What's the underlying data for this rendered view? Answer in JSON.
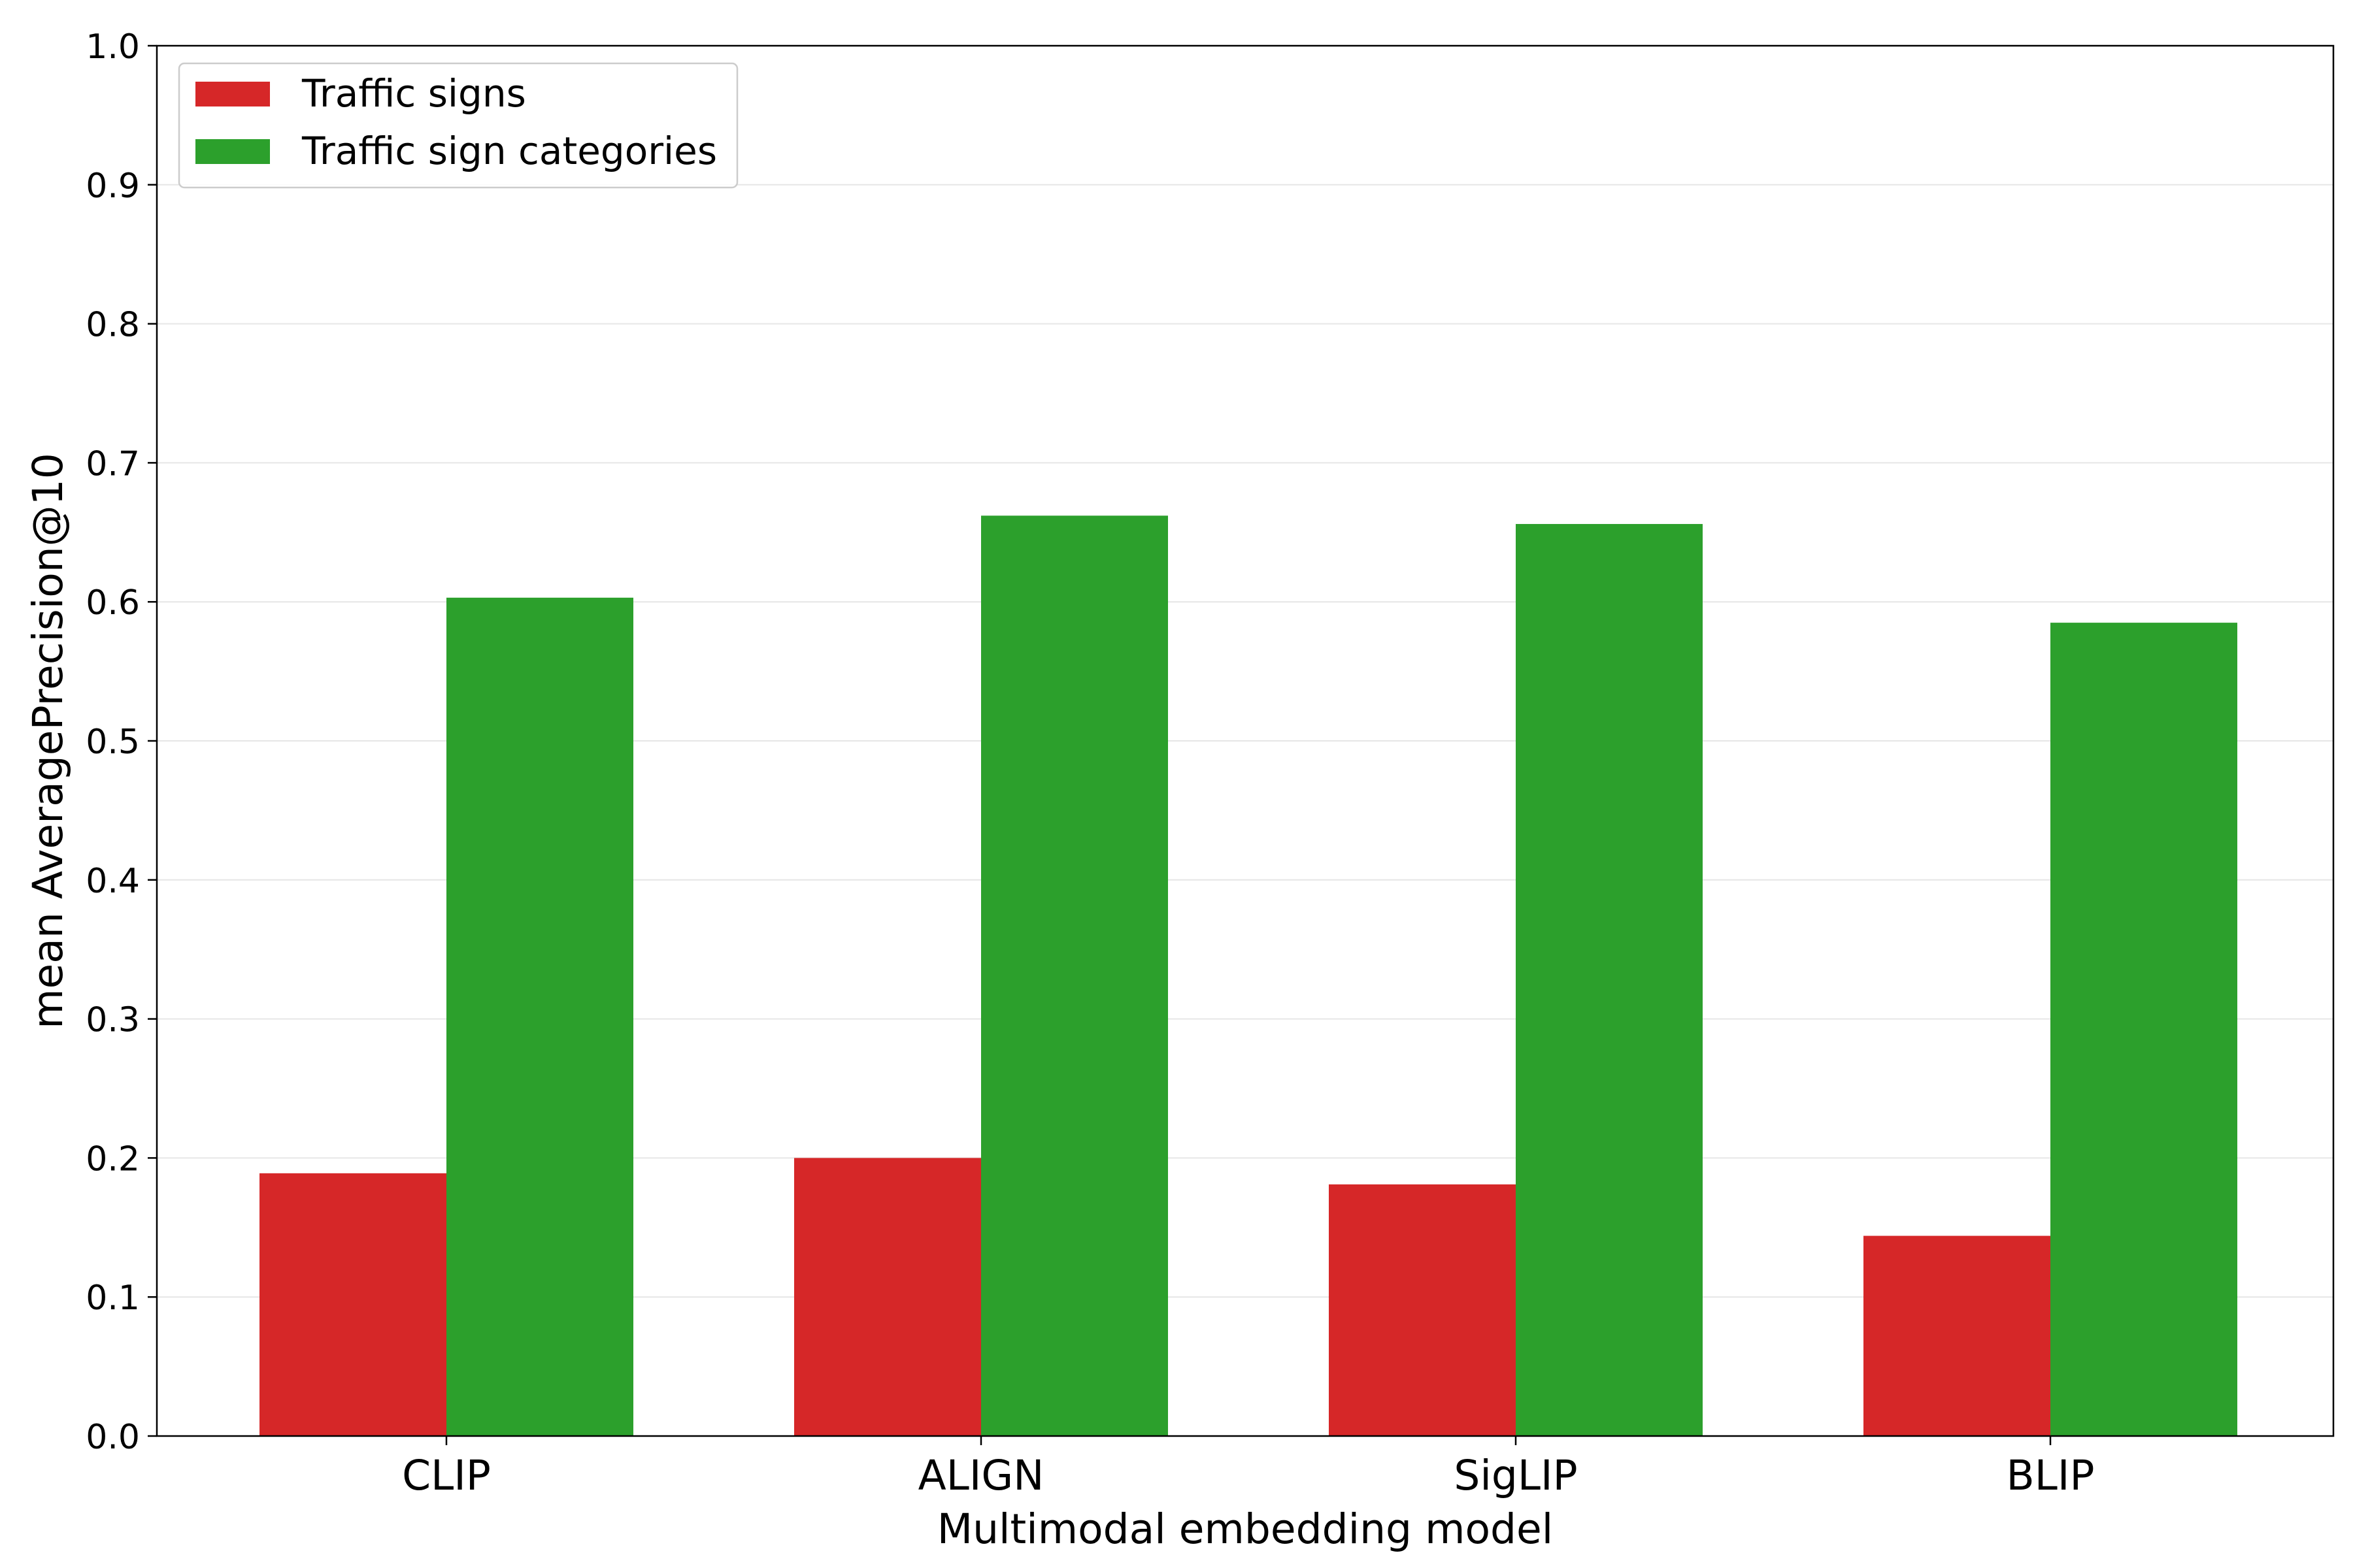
{
  "chart_data": {
    "type": "bar",
    "title": "",
    "xlabel": "Multimodal embedding model",
    "ylabel": "mean AveragePrecision@10",
    "categories": [
      "CLIP",
      "ALIGN",
      "SigLIP",
      "BLIP"
    ],
    "series": [
      {
        "name": "Traffic signs",
        "color": "#d62728",
        "values": [
          0.189,
          0.2,
          0.181,
          0.144
        ]
      },
      {
        "name": "Traffic sign categories",
        "color": "#2ca02c",
        "values": [
          0.603,
          0.662,
          0.656,
          0.585
        ]
      }
    ],
    "ylim": [
      0,
      1.0
    ],
    "yticks": [
      "0.0",
      "0.1",
      "0.2",
      "0.3",
      "0.4",
      "0.5",
      "0.6",
      "0.7",
      "0.8",
      "0.9",
      "1.0"
    ],
    "grid": "horizontal",
    "legend_position": "top-left"
  }
}
